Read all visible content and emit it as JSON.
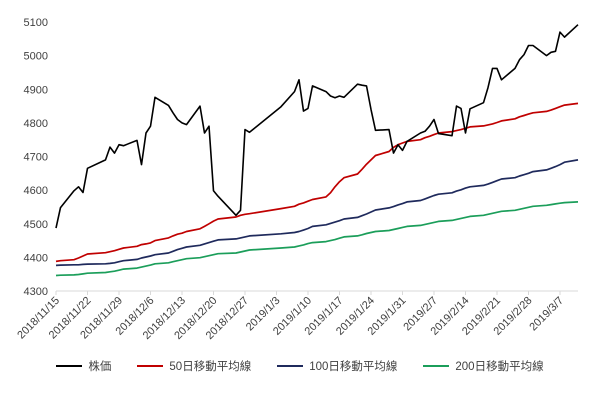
{
  "chart_data": {
    "type": "line",
    "title": "",
    "xlabel": "",
    "ylabel": "",
    "ylim": [
      4300,
      5100
    ],
    "yticks": [
      4300,
      4400,
      4500,
      4600,
      4700,
      4800,
      4900,
      5000,
      5100
    ],
    "grid": false,
    "legend_position": "bottom",
    "xtick_labels": [
      "2018/11/15",
      "2018/11/22",
      "2018/11/29",
      "2018/12/6",
      "2018/12/13",
      "2018/12/20",
      "2018/12/27",
      "2019/1/3",
      "2019/1/10",
      "2019/1/17",
      "2019/1/24",
      "2019/1/31",
      "2019/2/7",
      "2019/2/14",
      "2019/2/21",
      "2019/2/28",
      "2019/3/7"
    ],
    "x": [
      "2018-11-15",
      "2018-11-16",
      "2018-11-19",
      "2018-11-20",
      "2018-11-21",
      "2018-11-22",
      "2018-11-26",
      "2018-11-27",
      "2018-11-28",
      "2018-11-29",
      "2018-11-30",
      "2018-12-03",
      "2018-12-04",
      "2018-12-05",
      "2018-12-06",
      "2018-12-07",
      "2018-12-10",
      "2018-12-11",
      "2018-12-12",
      "2018-12-13",
      "2018-12-14",
      "2018-12-17",
      "2018-12-18",
      "2018-12-19",
      "2018-12-20",
      "2018-12-21",
      "2018-12-25",
      "2018-12-26",
      "2018-12-27",
      "2018-12-28",
      "2019-01-04",
      "2019-01-07",
      "2019-01-08",
      "2019-01-09",
      "2019-01-10",
      "2019-01-11",
      "2019-01-14",
      "2019-01-15",
      "2019-01-16",
      "2019-01-17",
      "2019-01-18",
      "2019-01-21",
      "2019-01-22",
      "2019-01-23",
      "2019-01-24",
      "2019-01-25",
      "2019-01-28",
      "2019-01-29",
      "2019-01-30",
      "2019-01-31",
      "2019-02-01",
      "2019-02-04",
      "2019-02-05",
      "2019-02-06",
      "2019-02-07",
      "2019-02-08",
      "2019-02-11",
      "2019-02-12",
      "2019-02-13",
      "2019-02-14",
      "2019-02-15",
      "2019-02-18",
      "2019-02-19",
      "2019-02-20",
      "2019-02-21",
      "2019-02-22",
      "2019-02-25",
      "2019-02-26",
      "2019-02-27",
      "2019-02-28",
      "2019-03-01",
      "2019-03-04",
      "2019-03-05",
      "2019-03-06",
      "2019-03-07",
      "2019-03-08",
      "2019-03-11"
    ],
    "series": [
      {
        "name": "株価",
        "color": "#000000",
        "values": [
          4487,
          4548,
          4598,
          4610,
          4593,
          4665,
          4690,
          4728,
          4710,
          4735,
          4732,
          4748,
          4676,
          4770,
          4790,
          4876,
          4852,
          4830,
          4810,
          4800,
          4795,
          4850,
          4770,
          4790,
          4598,
          4582,
          4525,
          4540,
          4780,
          4772,
          4848,
          4893,
          4928,
          4835,
          4843,
          4910,
          4893,
          4880,
          4875,
          4880,
          4876,
          4915,
          4912,
          4910,
          4840,
          4778,
          4780,
          4710,
          4735,
          4718,
          4745,
          4770,
          4775,
          4790,
          4810,
          4768,
          4762,
          4850,
          4843,
          4770,
          4842,
          4860,
          4905,
          4962,
          4962,
          4928,
          4962,
          4988,
          5003,
          5030,
          5030,
          5000,
          5010,
          5013,
          5070,
          5055,
          5092
        ]
      },
      {
        "name": "50日移動平均線",
        "color": "#c00000",
        "values": [
          4388,
          4390,
          4393,
          4398,
          4404,
          4410,
          4414,
          4417,
          4420,
          4424,
          4428,
          4433,
          4438,
          4440,
          4443,
          4450,
          4458,
          4464,
          4469,
          4472,
          4477,
          4485,
          4492,
          4500,
          4508,
          4514,
          4520,
          4525,
          4528,
          4530,
          4545,
          4552,
          4558,
          4562,
          4567,
          4572,
          4580,
          4592,
          4610,
          4625,
          4637,
          4648,
          4662,
          4677,
          4690,
          4703,
          4715,
          4727,
          4735,
          4740,
          4745,
          4750,
          4756,
          4760,
          4765,
          4770,
          4774,
          4777,
          4780,
          4784,
          4788,
          4791,
          4794,
          4797,
          4801,
          4806,
          4812,
          4818,
          4822,
          4826,
          4830,
          4834,
          4838,
          4843,
          4848,
          4853,
          4858
        ]
      },
      {
        "name": "100日移動平均線",
        "color": "#1f2a5c",
        "values": [
          4376,
          4377,
          4378,
          4378,
          4379,
          4380,
          4381,
          4382,
          4384,
          4387,
          4390,
          4394,
          4398,
          4401,
          4404,
          4408,
          4413,
          4418,
          4423,
          4427,
          4431,
          4436,
          4440,
          4444,
          4448,
          4452,
          4455,
          4458,
          4461,
          4464,
          4470,
          4474,
          4477,
          4481,
          4486,
          4492,
          4497,
          4501,
          4505,
          4509,
          4514,
          4519,
          4524,
          4529,
          4535,
          4541,
          4547,
          4551,
          4556,
          4560,
          4565,
          4569,
          4574,
          4579,
          4584,
          4588,
          4592,
          4597,
          4601,
          4606,
          4610,
          4614,
          4618,
          4623,
          4628,
          4633,
          4637,
          4642,
          4646,
          4650,
          4655,
          4660,
          4665,
          4670,
          4676,
          4683,
          4690
        ]
      },
      {
        "name": "200日移動平均線",
        "color": "#1b9e5a",
        "values": [
          4346,
          4347,
          4348,
          4349,
          4351,
          4353,
          4355,
          4357,
          4359,
          4362,
          4365,
          4368,
          4371,
          4374,
          4377,
          4381,
          4384,
          4387,
          4390,
          4393,
          4396,
          4399,
          4402,
          4405,
          4408,
          4411,
          4413,
          4416,
          4419,
          4422,
          4428,
          4431,
          4434,
          4437,
          4441,
          4444,
          4447,
          4450,
          4453,
          4457,
          4461,
          4464,
          4467,
          4471,
          4474,
          4477,
          4480,
          4483,
          4486,
          4489,
          4492,
          4495,
          4498,
          4501,
          4504,
          4507,
          4510,
          4513,
          4516,
          4519,
          4522,
          4525,
          4528,
          4531,
          4534,
          4537,
          4540,
          4543,
          4546,
          4549,
          4552,
          4555,
          4557,
          4559,
          4561,
          4563,
          4565
        ]
      }
    ]
  }
}
